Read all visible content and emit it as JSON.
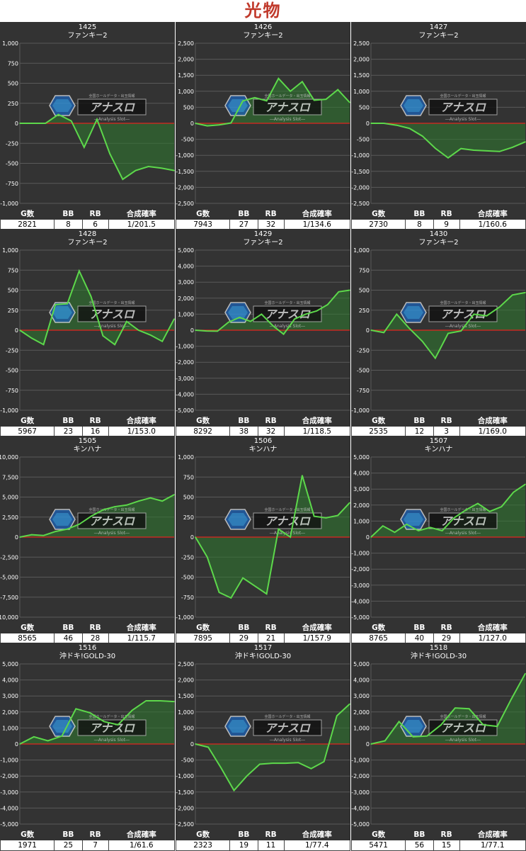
{
  "page_title": "光物",
  "stats_headers": [
    "G数",
    "BB",
    "RB",
    "合成確率"
  ],
  "watermark": {
    "brand": "アナスロ",
    "sub": "―Analysis Slot―",
    "tagline": "全国ホールデータ・出玉情報"
  },
  "colors": {
    "background": "#333333",
    "line": "#5dd84b",
    "fill": "#2e7a2e",
    "zero_line": "#e0261f",
    "grid": "#5a5a5a",
    "title": "#c0392b"
  },
  "chart_data": [
    {
      "type": "area",
      "machine_no": "1425",
      "model": "ファンキー2",
      "ylim": [
        -1000,
        1000
      ],
      "yticks": [
        "1,000",
        "750",
        "500",
        "250",
        "0",
        "-250",
        "-500",
        "-750",
        "-1,000"
      ],
      "values": [
        0,
        0,
        0,
        110,
        30,
        -300,
        50,
        -380,
        -700,
        -590,
        -540,
        -560,
        -590
      ],
      "stats": {
        "games": "2821",
        "bb": "8",
        "rb": "6",
        "prob": "1/201.5"
      }
    },
    {
      "type": "area",
      "machine_no": "1426",
      "model": "ファンキー2",
      "ylim": [
        -2500,
        2500
      ],
      "yticks": [
        "2,500",
        "2,000",
        "1,500",
        "1,000",
        "500",
        "0",
        "-500",
        "-1,000",
        "-1,500",
        "-2,000",
        "-2,500"
      ],
      "values": [
        0,
        -80,
        -50,
        10,
        700,
        800,
        700,
        1400,
        1000,
        1300,
        720,
        750,
        1050,
        650
      ],
      "stats": {
        "games": "7943",
        "bb": "27",
        "rb": "32",
        "prob": "1/134.6"
      }
    },
    {
      "type": "area",
      "machine_no": "1427",
      "model": "ファンキー2",
      "ylim": [
        -2500,
        2500
      ],
      "yticks": [
        "2,500",
        "2,000",
        "1,500",
        "1,000",
        "500",
        "0",
        "-500",
        "-1,000",
        "-1,500",
        "-2,000",
        "-2,500"
      ],
      "values": [
        0,
        0,
        -60,
        -160,
        -400,
        -780,
        -1080,
        -790,
        -840,
        -860,
        -880,
        -750,
        -580
      ],
      "stats": {
        "games": "2730",
        "bb": "8",
        "rb": "9",
        "prob": "1/160.6"
      }
    },
    {
      "type": "area",
      "machine_no": "1428",
      "model": "ファンキー2",
      "ylim": [
        -1000,
        1000
      ],
      "yticks": [
        "1,000",
        "750",
        "500",
        "250",
        "0",
        "-250",
        "-500",
        "-750",
        "-1,000"
      ],
      "values": [
        0,
        -100,
        -180,
        320,
        330,
        740,
        420,
        -70,
        -180,
        110,
        0,
        -60,
        -140,
        140
      ],
      "stats": {
        "games": "5967",
        "bb": "23",
        "rb": "16",
        "prob": "1/153.0"
      }
    },
    {
      "type": "area",
      "machine_no": "1429",
      "model": "ファンキー2",
      "ylim": [
        -5000,
        5000
      ],
      "yticks": [
        "5,000",
        "4,000",
        "3,000",
        "2,000",
        "1,000",
        "0",
        "-1,000",
        "-2,000",
        "-3,000",
        "-4,000",
        "-5,000"
      ],
      "values": [
        0,
        -50,
        -60,
        500,
        800,
        550,
        1000,
        300,
        -250,
        700,
        1000,
        1200,
        1600,
        2400,
        2500
      ],
      "stats": {
        "games": "8292",
        "bb": "38",
        "rb": "32",
        "prob": "1/118.5"
      }
    },
    {
      "type": "area",
      "machine_no": "1430",
      "model": "ファンキー2",
      "ylim": [
        -1000,
        1000
      ],
      "yticks": [
        "1,000",
        "750",
        "500",
        "250",
        "0",
        "-250",
        "-500",
        "-750",
        "-1,000"
      ],
      "values": [
        0,
        -30,
        200,
        20,
        -140,
        -350,
        -40,
        -10,
        200,
        180,
        290,
        440,
        470
      ],
      "stats": {
        "games": "2535",
        "bb": "12",
        "rb": "3",
        "prob": "1/169.0"
      }
    },
    {
      "type": "area",
      "machine_no": "1505",
      "model": "キンハナ",
      "ylim": [
        -10000,
        10000
      ],
      "yticks": [
        "10,000",
        "7,500",
        "5,000",
        "2,500",
        "0",
        "-2,500",
        "-5,000",
        "-7,500",
        "-10,000"
      ],
      "values": [
        0,
        300,
        200,
        700,
        1000,
        1600,
        2600,
        3400,
        3800,
        4000,
        4500,
        4900,
        4500,
        5300
      ],
      "stats": {
        "games": "8565",
        "bb": "46",
        "rb": "28",
        "prob": "1/115.7"
      }
    },
    {
      "type": "area",
      "machine_no": "1506",
      "model": "キンハナ",
      "ylim": [
        -1000,
        1000
      ],
      "yticks": [
        "1,000",
        "750",
        "500",
        "250",
        "0",
        "-250",
        "-500",
        "-750",
        "-1,000"
      ],
      "values": [
        0,
        -250,
        -690,
        -760,
        -510,
        -610,
        -710,
        100,
        0,
        770,
        260,
        240,
        270,
        430
      ],
      "stats": {
        "games": "7895",
        "bb": "29",
        "rb": "21",
        "prob": "1/157.9"
      }
    },
    {
      "type": "area",
      "machine_no": "1507",
      "model": "キンハナ",
      "ylim": [
        -5000,
        5000
      ],
      "yticks": [
        "5,000",
        "4,000",
        "3,000",
        "2,000",
        "1,000",
        "0",
        "-1,000",
        "-2,000",
        "-3,000",
        "-4,000",
        "-5,000"
      ],
      "values": [
        0,
        700,
        300,
        800,
        400,
        600,
        400,
        1200,
        1700,
        2100,
        1600,
        1900,
        2800,
        3300
      ],
      "stats": {
        "games": "8765",
        "bb": "40",
        "rb": "29",
        "prob": "1/127.0"
      }
    },
    {
      "type": "area",
      "machine_no": "1516",
      "model": "沖ドキ!GOLD-30",
      "ylim": [
        -5000,
        5000
      ],
      "yticks": [
        "5,000",
        "4,000",
        "3,000",
        "2,000",
        "1,000",
        "0",
        "-1,000",
        "-2,000",
        "-3,000",
        "-4,000",
        "-5,000"
      ],
      "values": [
        0,
        450,
        200,
        500,
        2200,
        1950,
        1400,
        1200,
        2100,
        2700,
        2700,
        2650
      ],
      "stats": {
        "games": "1971",
        "bb": "25",
        "rb": "7",
        "prob": "1/61.6"
      }
    },
    {
      "type": "area",
      "machine_no": "1517",
      "model": "沖ドキ!GOLD-30",
      "ylim": [
        -2500,
        2500
      ],
      "yticks": [
        "2,500",
        "2,000",
        "1,500",
        "1,000",
        "500",
        "0",
        "-500",
        "-1,000",
        "-1,500",
        "-2,000",
        "-2,500"
      ],
      "values": [
        0,
        -100,
        -750,
        -1450,
        -1000,
        -630,
        -600,
        -600,
        -580,
        -770,
        -550,
        880,
        1250
      ],
      "stats": {
        "games": "2323",
        "bb": "19",
        "rb": "11",
        "prob": "1/77.4"
      }
    },
    {
      "type": "area",
      "machine_no": "1518",
      "model": "沖ドキ!GOLD-30",
      "ylim": [
        -5000,
        5000
      ],
      "yticks": [
        "5,000",
        "4,000",
        "3,000",
        "2,000",
        "1,000",
        "0",
        "-1,000",
        "-2,000",
        "-3,000",
        "-4,000",
        "-5,000"
      ],
      "values": [
        0,
        200,
        1400,
        450,
        500,
        1200,
        2250,
        2200,
        1200,
        1100,
        2800,
        4400
      ],
      "stats": {
        "games": "5471",
        "bb": "56",
        "rb": "15",
        "prob": "1/77.1"
      }
    }
  ]
}
